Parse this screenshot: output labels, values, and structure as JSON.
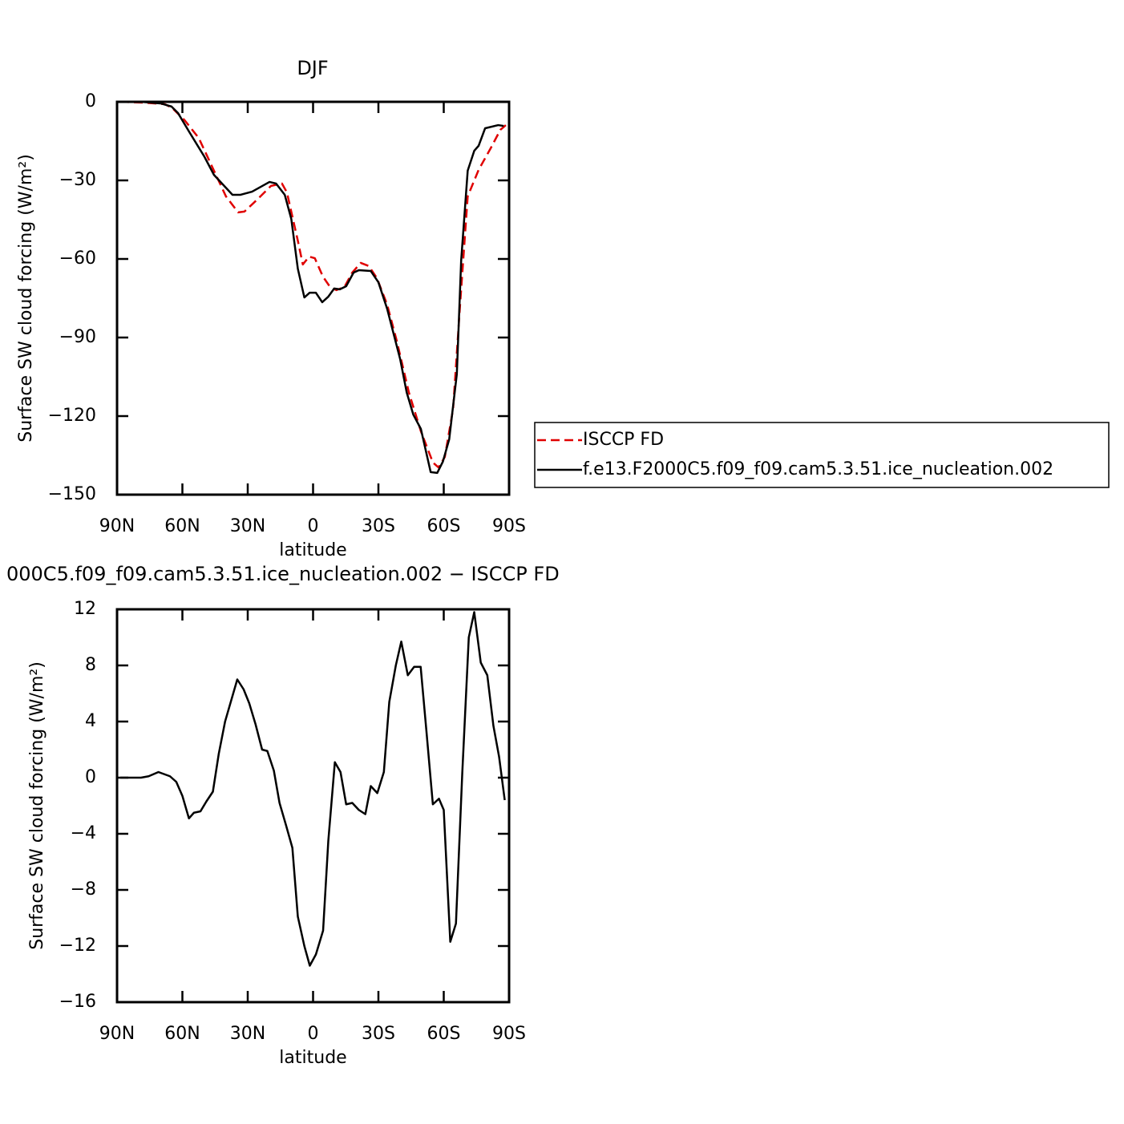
{
  "chart_data": [
    {
      "type": "line",
      "title": "DJF",
      "xlabel": "latitude",
      "ylabel": "Surface SW cloud forcing (W/m²)",
      "xlim": [
        90,
        -90
      ],
      "xticks": [
        {
          "value": 90,
          "label": "90N"
        },
        {
          "value": 60,
          "label": "60N"
        },
        {
          "value": 30,
          "label": "30N"
        },
        0,
        {
          "value": -30,
          "label": "30S"
        },
        {
          "value": -60,
          "label": "60S"
        },
        {
          "value": -90,
          "label": "90S"
        }
      ],
      "ylim": [
        -150,
        0
      ],
      "yticks": [
        0,
        -30,
        -60,
        -90,
        -120,
        -150
      ],
      "legend": "right",
      "series": [
        {
          "name": "ISCCP FD",
          "color": "#e00000",
          "dash": true,
          "x": [
            88.5,
            78,
            68,
            64.6,
            59,
            52.5,
            45.5,
            40,
            34.4,
            31.5,
            26,
            19.3,
            14.3,
            12,
            9.5,
            7,
            4.7,
            1.8,
            -0.8,
            -4.5,
            -7.8,
            -10.7,
            -14.4,
            -18,
            -21.9,
            -25.6,
            -29.3,
            -34,
            -38.4,
            -44,
            -49.5,
            -55,
            -57.6,
            -60.5,
            -64.3,
            -67.5,
            -71,
            -76,
            -81.5,
            -86,
            -88.5
          ],
          "values": [
            0,
            -0.3,
            -0.9,
            -2.4,
            -7,
            -13.8,
            -26.3,
            -36.1,
            -42.2,
            -41.9,
            -37.6,
            -32.1,
            -31.2,
            -34.6,
            -43.8,
            -53,
            -62.1,
            -59.1,
            -59.7,
            -66.7,
            -70.7,
            -71.9,
            -70.7,
            -65.2,
            -61.5,
            -62.7,
            -67.3,
            -77.4,
            -91.2,
            -111,
            -125.8,
            -137.7,
            -139.6,
            -135.6,
            -117.2,
            -77.4,
            -36.1,
            -26,
            -17.8,
            -10.7,
            -8.9
          ]
        },
        {
          "name": "f.e13.F2000C5.f09_f09.cam5.3.51.ice_nucleation.002",
          "color": "#000000",
          "dash": false,
          "x": [
            88.5,
            79,
            70,
            65,
            62,
            57,
            50,
            45.5,
            37,
            33.3,
            28,
            20,
            17,
            13,
            10,
            7,
            4,
            1.6,
            -1.3,
            -4.2,
            -7,
            -9.7,
            -12.3,
            -15.2,
            -18.6,
            -21,
            -26.5,
            -30,
            -34,
            -40,
            -43,
            -46,
            -49.5,
            -54,
            -57,
            -59.6,
            -62.5,
            -66,
            -68,
            -71,
            -74,
            -76,
            -79,
            -85,
            -87.5
          ],
          "values": [
            0,
            0,
            -0.6,
            -1.8,
            -4.3,
            -11.3,
            -20.8,
            -27.9,
            -35.5,
            -35.5,
            -34.3,
            -30.6,
            -31.2,
            -35.5,
            -44.7,
            -63.7,
            -74.7,
            -72.9,
            -72.9,
            -76.5,
            -74.4,
            -71.3,
            -71.6,
            -70.4,
            -65.2,
            -64.3,
            -64.6,
            -68.9,
            -79,
            -98.3,
            -111,
            -119.4,
            -124.9,
            -141.4,
            -141.7,
            -137.4,
            -128.9,
            -104,
            -60.6,
            -26.3,
            -18.7,
            -16.8,
            -10.1,
            -8.9,
            -9.2
          ]
        }
      ]
    },
    {
      "type": "line",
      "title": "000C5.f09_f09.cam5.3.51.ice_nucleation.002 − ISCCP FD",
      "xlabel": "latitude",
      "ylabel": "Surface SW cloud forcing (W/m²)",
      "xlim": [
        90,
        -90
      ],
      "xticks": [
        {
          "value": 90,
          "label": "90N"
        },
        {
          "value": 60,
          "label": "60N"
        },
        {
          "value": 30,
          "label": "30N"
        },
        0,
        {
          "value": -30,
          "label": "30S"
        },
        {
          "value": -60,
          "label": "60S"
        },
        {
          "value": -90,
          "label": "90S"
        }
      ],
      "ylim": [
        -16,
        12
      ],
      "yticks": [
        12,
        8,
        4,
        0,
        -4,
        -8,
        -12,
        -16
      ],
      "series": [
        {
          "color": "#000000",
          "dash": false,
          "x": [
            88.5,
            79,
            75.5,
            71,
            65.7,
            62.8,
            60,
            57,
            54.7,
            51.7,
            49,
            46,
            43.3,
            40.4,
            34.8,
            31.9,
            29.3,
            26.4,
            23.4,
            21,
            18,
            15.4,
            12.4,
            9.5,
            7,
            4,
            1.5,
            -1.3,
            -4.6,
            -7,
            -10,
            -12.6,
            -15.2,
            -18,
            -21,
            -24,
            -26.5,
            -29.5,
            -32.5,
            -35,
            -38,
            -40.5,
            -43.5,
            -46.4,
            -49.4,
            -52,
            -55,
            -57.8,
            -60,
            -63,
            -65.6,
            -68.5,
            -71.5,
            -74,
            -77,
            -80,
            -82.8,
            -85.4,
            -88
          ],
          "values": [
            0,
            0,
            0.1,
            0.4,
            0.1,
            -0.3,
            -1.3,
            -2.9,
            -2.5,
            -2.4,
            -1.7,
            -1,
            1.7,
            4,
            7,
            6.3,
            5.3,
            3.8,
            2,
            1.9,
            0.5,
            -1.8,
            -3.4,
            -5,
            -9.9,
            -12,
            -13.4,
            -12.6,
            -10.9,
            -4.5,
            1.1,
            0.4,
            -1.9,
            -1.8,
            -2.3,
            -2.6,
            -0.6,
            -1.1,
            0.4,
            5.4,
            8,
            9.7,
            7.3,
            7.9,
            7.9,
            3.4,
            -1.9,
            -1.5,
            -2.3,
            -11.7,
            -10.4,
            0.3,
            10,
            11.8,
            8.2,
            7.3,
            3.7,
            1.5,
            -1.6
          ]
        }
      ]
    }
  ]
}
